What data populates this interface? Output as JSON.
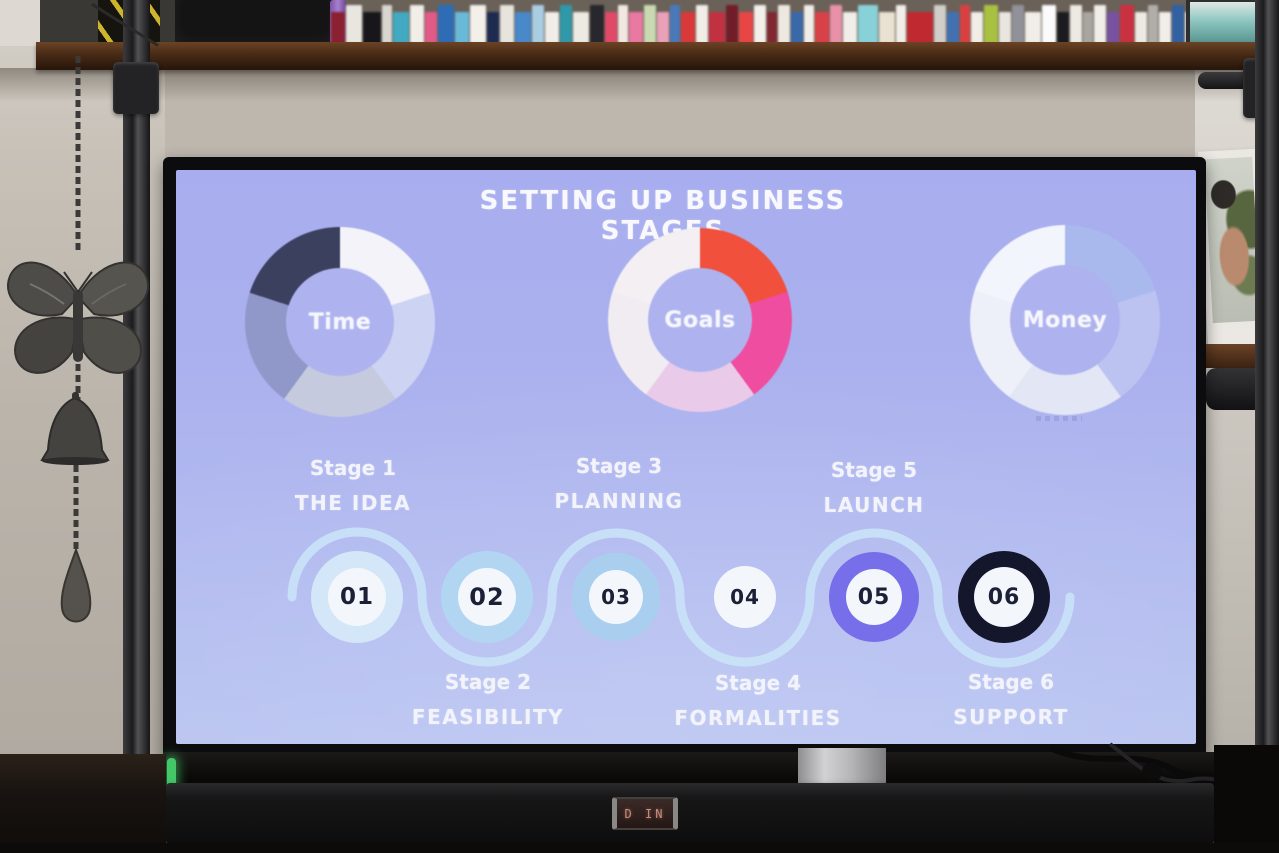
{
  "screen": {
    "title": "SETTING UP BUSINESS STAGES",
    "background_top": "#a8aeee",
    "background_bottom": "#bac4f1",
    "wave_color": "#cae3f7",
    "donuts": [
      {
        "label": "Time"
      },
      {
        "label": "Goals"
      },
      {
        "label": "Money"
      }
    ],
    "stages": [
      {
        "number": "01",
        "stage_label": "Stage 1",
        "stage_name": "THE IDEA",
        "label_position": "top",
        "ring_color": "#d3e7f8"
      },
      {
        "number": "02",
        "stage_label": "Stage 2",
        "stage_name": "FEASIBILITY",
        "label_position": "bottom",
        "ring_color": "#b2d6f2"
      },
      {
        "number": "03",
        "stage_label": "Stage 3",
        "stage_name": "PLANNING",
        "label_position": "top",
        "ring_color": "#aacfee"
      },
      {
        "number": "04",
        "stage_label": "Stage 4",
        "stage_name": "FORMALITIES",
        "label_position": "bottom",
        "ring_color": null
      },
      {
        "number": "05",
        "stage_label": "Stage 5",
        "stage_name": "LAUNCH",
        "label_position": "top",
        "ring_color": "#776ee9"
      },
      {
        "number": "06",
        "stage_label": "Stage 6",
        "stage_name": "SUPPORT",
        "label_position": "bottom",
        "ring_color": "#14162b"
      }
    ],
    "number_text_color": "#1b2036"
  },
  "chart_data": [
    {
      "type": "pie",
      "title": "Time",
      "donut": true,
      "center_label": "Time",
      "values": [
        20,
        20,
        20,
        20,
        20
      ],
      "colors": [
        "#f3f3f9",
        "#cdd3f3",
        "#c5cade",
        "#9097c9",
        "#3b405f"
      ]
    },
    {
      "type": "pie",
      "title": "Goals",
      "donut": true,
      "center_label": "Goals",
      "values": [
        20,
        20,
        20,
        20,
        20
      ],
      "colors": [
        "#f0503c",
        "#ef4d9f",
        "#e9cbe9",
        "#f1ecf1",
        "#f3eff3"
      ]
    },
    {
      "type": "pie",
      "title": "Money",
      "donut": true,
      "center_label": "Money",
      "values": [
        20,
        20,
        20,
        20,
        20
      ],
      "colors": [
        "#a9b9ed",
        "#bcc3f1",
        "#e2e6f5",
        "#edeff9",
        "#f3f5fc"
      ]
    }
  ],
  "soundbar": {
    "display_text": "D IN"
  },
  "shelf": {
    "spines": [
      [
        "#8a2030",
        14
      ],
      [
        "#e9e5df",
        16
      ],
      [
        "#17171b",
        18
      ],
      [
        "#d9d5cf",
        10
      ],
      [
        "#41a9c1",
        16
      ],
      [
        "#f1ede7",
        14
      ],
      [
        "#e15b89",
        12
      ],
      [
        "#2e6db5",
        16
      ],
      [
        "#69b9d9",
        14
      ],
      [
        "#f3efe9",
        16
      ],
      [
        "#1d2b51",
        12
      ],
      [
        "#e7e3dd",
        14
      ],
      [
        "#4989c9",
        16
      ],
      [
        "#a9cde1",
        12
      ],
      [
        "#f1ede9",
        14
      ],
      [
        "#2f99a9",
        12
      ],
      [
        "#ede9e3",
        16
      ],
      [
        "#27272d",
        14
      ],
      [
        "#e14969",
        12
      ],
      [
        "#f1e9e1",
        10
      ],
      [
        "#e979a1",
        14
      ],
      [
        "#c9d9b1",
        12
      ],
      [
        "#e9a1b9",
        12
      ],
      [
        "#4979b9",
        10
      ],
      [
        "#d93939",
        14
      ],
      [
        "#f1ede7",
        12
      ],
      [
        "#c13141",
        16
      ],
      [
        "#711d29",
        12
      ],
      [
        "#e94545",
        14
      ],
      [
        "#f3efe9",
        12
      ],
      [
        "#812933",
        10
      ],
      [
        "#ede9e1",
        12
      ],
      [
        "#3969a9",
        12
      ],
      [
        "#f1ede9",
        10
      ],
      [
        "#d94149",
        14
      ],
      [
        "#e991a9",
        12
      ],
      [
        "#f1ede9",
        14
      ],
      [
        "#89d1d9",
        20
      ],
      [
        "#e9e1d1",
        16
      ],
      [
        "#f1ede9",
        10
      ],
      [
        "#c12931",
        26
      ],
      [
        "#d1cdc9",
        12
      ],
      [
        "#4171b1",
        12
      ],
      [
        "#d94141",
        10
      ],
      [
        "#f1ede7",
        12
      ],
      [
        "#a9c141",
        14
      ],
      [
        "#e9e5df",
        12
      ],
      [
        "#919199",
        12
      ],
      [
        "#f1ede9",
        16
      ],
      [
        "#fbfbfb",
        14
      ],
      [
        "#1b1b1f",
        12
      ],
      [
        "#ede9e3",
        12
      ],
      [
        "#a9a5a1",
        10
      ],
      [
        "#f1ede9",
        12
      ],
      [
        "#7951a1",
        12
      ],
      [
        "#c93141",
        14
      ],
      [
        "#ede9e3",
        12
      ],
      [
        "#b1ada9",
        10
      ],
      [
        "#f1ede9",
        12
      ],
      [
        "#3161a1",
        12
      ],
      [
        "#ede9e5",
        12
      ],
      [
        "#212125",
        14
      ],
      [
        "#898991",
        12
      ],
      [
        "#19191d",
        16
      ],
      [
        "#c9a989",
        14
      ]
    ]
  }
}
